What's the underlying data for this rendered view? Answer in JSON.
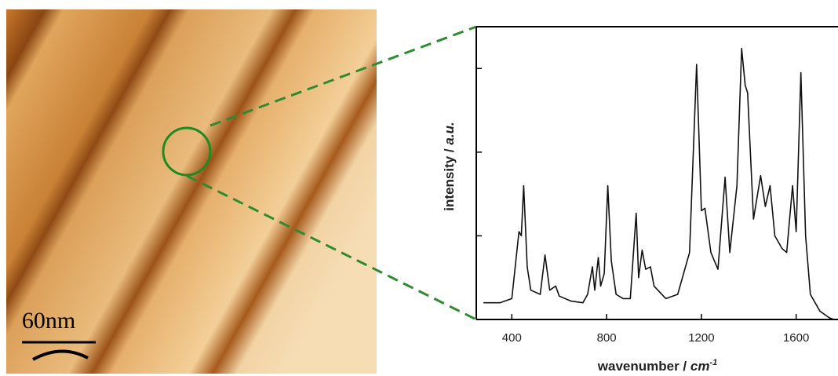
{
  "chart_data": {
    "type": "line",
    "x_label": "wavenumber / ",
    "x_unit": "cm",
    "x_unit_exponent": "-1",
    "y_label": "intensity / ",
    "y_unit": "a.u.",
    "scale_bar_label": "60nm",
    "x": [
      280,
      300,
      350,
      400,
      430,
      440,
      450,
      465,
      480,
      520,
      540,
      560,
      585,
      600,
      650,
      700,
      720,
      740,
      750,
      765,
      775,
      790,
      805,
      820,
      840,
      870,
      900,
      925,
      935,
      950,
      965,
      985,
      1000,
      1050,
      1100,
      1150,
      1180,
      1200,
      1215,
      1240,
      1270,
      1300,
      1320,
      1350,
      1370,
      1385,
      1395,
      1420,
      1450,
      1470,
      1490,
      1510,
      1540,
      1560,
      1585,
      1600,
      1620,
      1640,
      1660,
      1700,
      1740,
      1760
    ],
    "series": [
      {
        "color": "#111111",
        "values": [
          0.2,
          0.2,
          0.2,
          0.25,
          1.05,
          1.0,
          1.6,
          0.63,
          0.35,
          0.3,
          0.77,
          0.35,
          0.4,
          0.28,
          0.22,
          0.2,
          0.3,
          0.63,
          0.35,
          0.74,
          0.4,
          0.55,
          1.6,
          0.7,
          0.3,
          0.25,
          0.25,
          1.27,
          0.5,
          0.83,
          0.6,
          0.63,
          0.4,
          0.25,
          0.3,
          0.8,
          3.05,
          1.3,
          1.33,
          0.8,
          0.6,
          1.7,
          0.8,
          1.6,
          3.24,
          2.8,
          2.71,
          1.2,
          1.72,
          1.35,
          1.6,
          1.0,
          0.85,
          0.8,
          1.6,
          1.05,
          2.95,
          1.0,
          0.3,
          0.1,
          0.02,
          0.0
        ]
      }
    ],
    "xlim": [
      250,
      1770
    ],
    "xticks": [
      400,
      800,
      1200,
      1600
    ],
    "ylim": [
      0,
      3.5
    ],
    "yticks": [
      0,
      1,
      2,
      3
    ]
  }
}
